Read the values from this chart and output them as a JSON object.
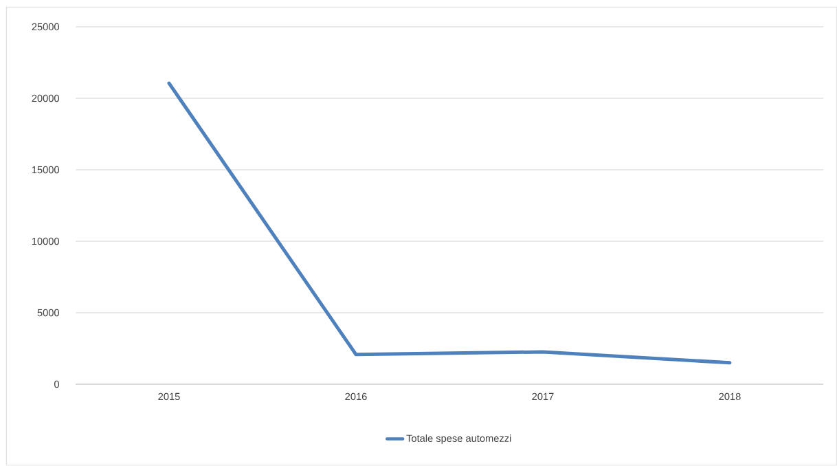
{
  "chart_data": {
    "type": "line",
    "categories": [
      "2015",
      "2016",
      "2017",
      "2018"
    ],
    "series": [
      {
        "name": "Totale spese automezzi",
        "color": "#4f81bd",
        "values": [
          21050,
          2080,
          2260,
          1500
        ]
      }
    ],
    "ylim": [
      0,
      25000
    ],
    "yticks": [
      0,
      5000,
      10000,
      15000,
      20000,
      25000
    ],
    "grid": "y",
    "legend": "bottom",
    "marker": "none",
    "line_style": "solid"
  }
}
